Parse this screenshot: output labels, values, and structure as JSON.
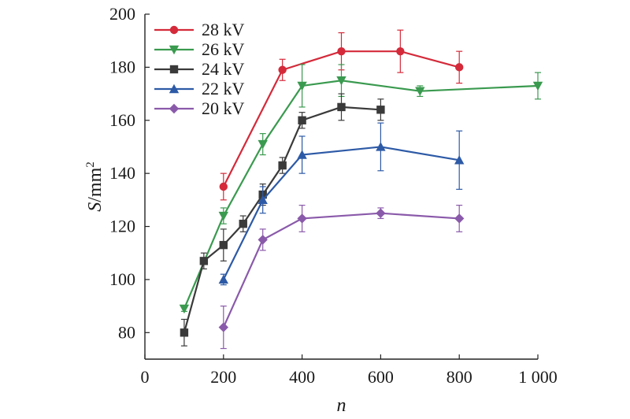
{
  "chart_data": {
    "type": "line",
    "xlabel": "n",
    "ylabel_main": "S",
    "ylabel_unit": "/mm",
    "ylabel_sup": "2",
    "xlim": [
      0,
      1000
    ],
    "ylim": [
      70,
      200
    ],
    "x_ticks": [
      0,
      200,
      400,
      600,
      800,
      1000
    ],
    "x_tick_labels": [
      "0",
      "200",
      "400",
      "600",
      "800",
      "1 000"
    ],
    "y_ticks": [
      80,
      100,
      120,
      140,
      160,
      180,
      200
    ],
    "y_tick_labels": [
      "80",
      "100",
      "120",
      "140",
      "160",
      "180",
      "200"
    ],
    "grid": false,
    "legend_position": "top-left",
    "series": [
      {
        "name": "28 kV",
        "color": "#d42a3a",
        "marker": "circle",
        "x": [
          200,
          350,
          500,
          650,
          800
        ],
        "y": [
          135,
          179,
          186,
          186,
          180
        ],
        "err": [
          5,
          4,
          7,
          8,
          6
        ]
      },
      {
        "name": "26 kV",
        "color": "#3a9a4f",
        "marker": "triangle-down",
        "x": [
          100,
          200,
          300,
          400,
          500,
          700,
          1000
        ],
        "y": [
          89,
          124,
          151,
          173,
          175,
          171,
          173
        ],
        "err": [
          1,
          3,
          4,
          8,
          6,
          2,
          5
        ]
      },
      {
        "name": "24 kV",
        "color": "#3a3a3a",
        "marker": "square",
        "x": [
          100,
          150,
          200,
          250,
          300,
          350,
          400,
          500,
          600
        ],
        "y": [
          80,
          107,
          113,
          121,
          132,
          143,
          160,
          165,
          164
        ],
        "err": [
          5,
          3,
          6,
          3,
          4,
          3,
          3,
          5,
          4
        ]
      },
      {
        "name": "22 kV",
        "color": "#2d5aa6",
        "marker": "triangle-up",
        "x": [
          200,
          300,
          400,
          600,
          800
        ],
        "y": [
          100,
          130,
          147,
          150,
          145
        ],
        "err": [
          2,
          5,
          7,
          9,
          11
        ]
      },
      {
        "name": "20 kV",
        "color": "#8a5aaa",
        "marker": "diamond",
        "x": [
          200,
          300,
          400,
          600,
          800
        ],
        "y": [
          82,
          115,
          123,
          125,
          123
        ],
        "err": [
          8,
          4,
          5,
          2,
          5
        ]
      }
    ]
  }
}
